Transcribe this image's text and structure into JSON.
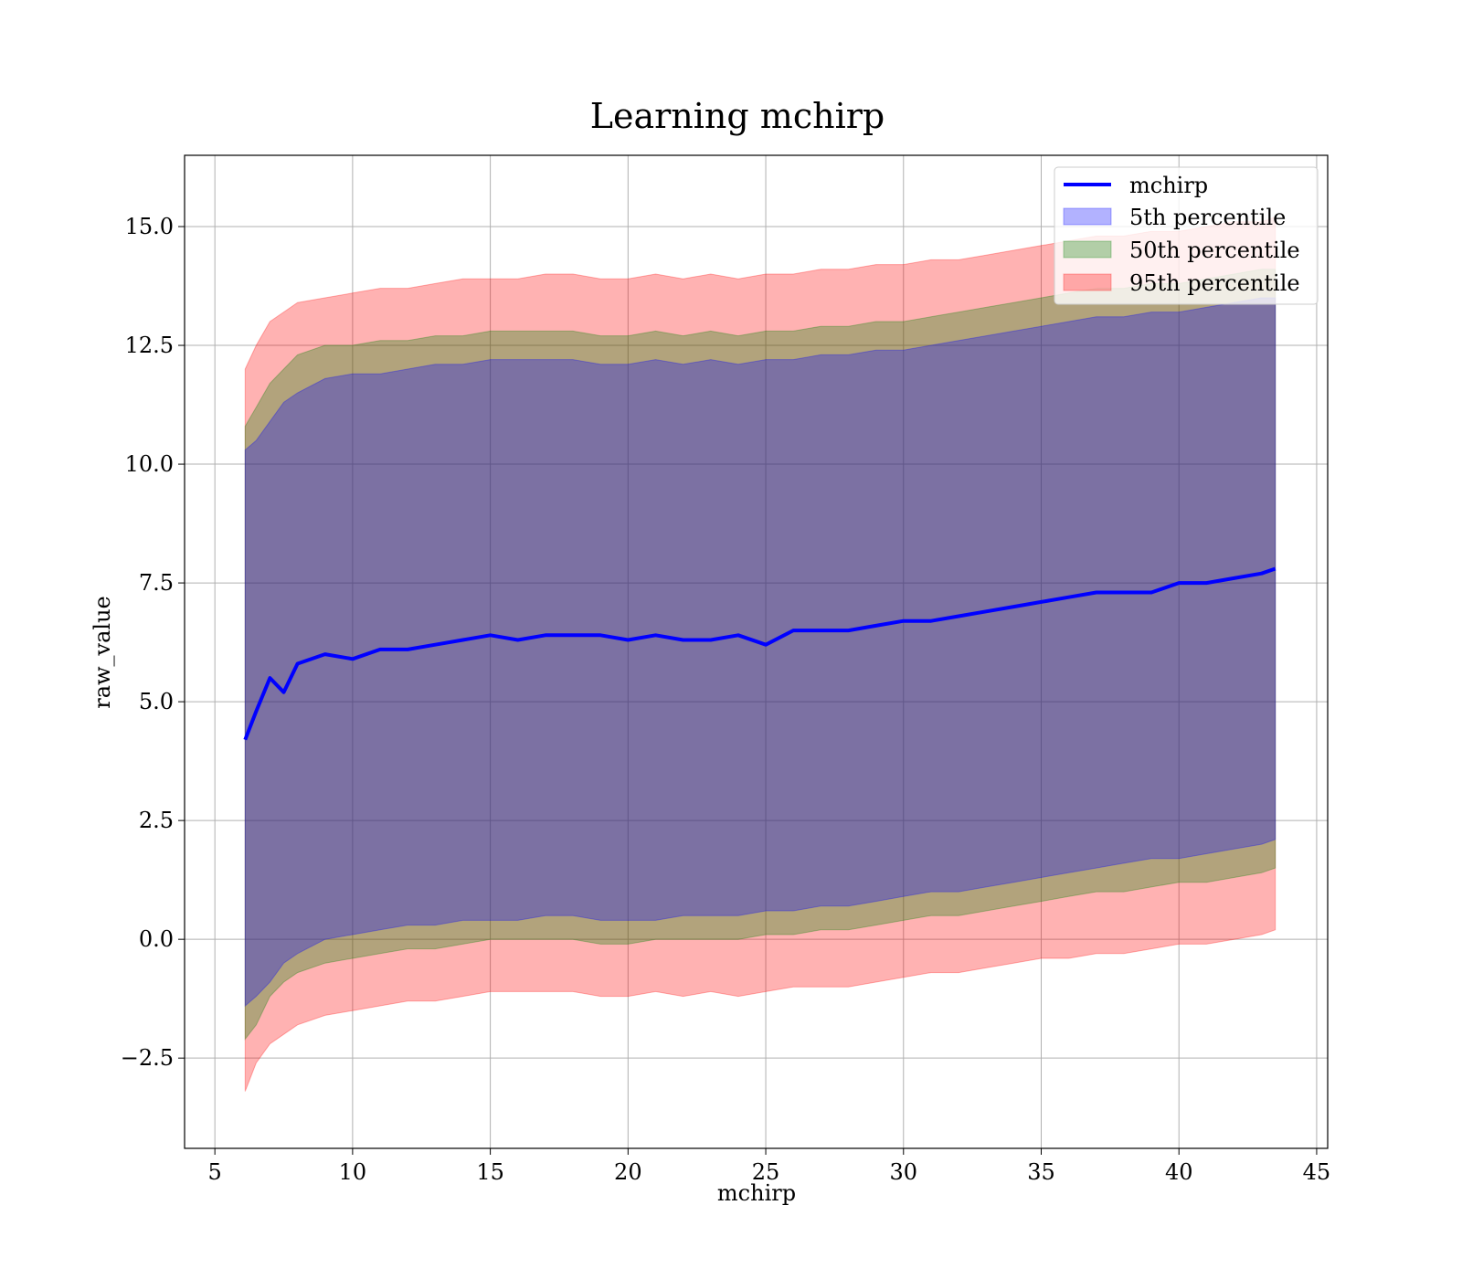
{
  "chart_data": {
    "type": "area",
    "title": "Learning mchirp",
    "xlabel": "mchirp",
    "ylabel": "raw_value",
    "xlim": [
      3.9,
      45.4
    ],
    "ylim": [
      -4.4,
      16.5
    ],
    "xticks": [
      5,
      10,
      15,
      20,
      25,
      30,
      35,
      40,
      45
    ],
    "xtick_labels": [
      "5",
      "10",
      "15",
      "20",
      "25",
      "30",
      "35",
      "40",
      "45"
    ],
    "yticks": [
      -2.5,
      0.0,
      2.5,
      5.0,
      7.5,
      10.0,
      12.5,
      15.0
    ],
    "ytick_labels": [
      "−2.5",
      "0.0",
      "2.5",
      "5.0",
      "7.5",
      "10.0",
      "12.5",
      "15.0"
    ],
    "grid": true,
    "legend_position": "upper right",
    "x": [
      6.1,
      6.5,
      7.0,
      7.5,
      8.0,
      9.0,
      10.0,
      11.0,
      12.0,
      13.0,
      14.0,
      15.0,
      16.0,
      17.0,
      18.0,
      19.0,
      20.0,
      21.0,
      22.0,
      23.0,
      24.0,
      25.0,
      26.0,
      27.0,
      28.0,
      29.0,
      30.0,
      31.0,
      32.0,
      33.0,
      34.0,
      35.0,
      36.0,
      37.0,
      38.0,
      39.0,
      40.0,
      41.0,
      42.0,
      43.0,
      43.5
    ],
    "series": [
      {
        "name": "mchirp",
        "kind": "line",
        "color": "#0000ff",
        "values": [
          4.2,
          4.8,
          5.5,
          5.2,
          5.8,
          6.0,
          5.9,
          6.1,
          6.1,
          6.2,
          6.3,
          6.4,
          6.3,
          6.4,
          6.4,
          6.4,
          6.3,
          6.4,
          6.3,
          6.3,
          6.4,
          6.2,
          6.5,
          6.5,
          6.5,
          6.6,
          6.7,
          6.7,
          6.8,
          6.9,
          7.0,
          7.1,
          7.2,
          7.3,
          7.3,
          7.3,
          7.5,
          7.5,
          7.6,
          7.7,
          7.8
        ]
      },
      {
        "name": "5th percentile",
        "kind": "band",
        "color": "#0000ff",
        "lower": [
          -1.4,
          -1.2,
          -0.9,
          -0.5,
          -0.3,
          0.0,
          0.1,
          0.2,
          0.3,
          0.3,
          0.4,
          0.4,
          0.4,
          0.5,
          0.5,
          0.4,
          0.4,
          0.4,
          0.5,
          0.5,
          0.5,
          0.6,
          0.6,
          0.7,
          0.7,
          0.8,
          0.9,
          1.0,
          1.0,
          1.1,
          1.2,
          1.3,
          1.4,
          1.5,
          1.6,
          1.7,
          1.7,
          1.8,
          1.9,
          2.0,
          2.1
        ],
        "upper": [
          10.3,
          10.5,
          10.9,
          11.3,
          11.5,
          11.8,
          11.9,
          11.9,
          12.0,
          12.1,
          12.1,
          12.2,
          12.2,
          12.2,
          12.2,
          12.1,
          12.1,
          12.2,
          12.1,
          12.2,
          12.1,
          12.2,
          12.2,
          12.3,
          12.3,
          12.4,
          12.4,
          12.5,
          12.6,
          12.7,
          12.8,
          12.9,
          13.0,
          13.1,
          13.1,
          13.2,
          13.2,
          13.3,
          13.4,
          13.5,
          13.5
        ]
      },
      {
        "name": "50th percentile",
        "kind": "band",
        "color": "#008000",
        "lower": [
          -2.1,
          -1.8,
          -1.2,
          -0.9,
          -0.7,
          -0.5,
          -0.4,
          -0.3,
          -0.2,
          -0.2,
          -0.1,
          0.0,
          0.0,
          0.0,
          0.0,
          -0.1,
          -0.1,
          0.0,
          0.0,
          0.0,
          0.0,
          0.1,
          0.1,
          0.2,
          0.2,
          0.3,
          0.4,
          0.5,
          0.5,
          0.6,
          0.7,
          0.8,
          0.9,
          1.0,
          1.0,
          1.1,
          1.2,
          1.2,
          1.3,
          1.4,
          1.5
        ],
        "upper": [
          10.8,
          11.2,
          11.7,
          12.0,
          12.3,
          12.5,
          12.5,
          12.6,
          12.6,
          12.7,
          12.7,
          12.8,
          12.8,
          12.8,
          12.8,
          12.7,
          12.7,
          12.8,
          12.7,
          12.8,
          12.7,
          12.8,
          12.8,
          12.9,
          12.9,
          13.0,
          13.0,
          13.1,
          13.2,
          13.3,
          13.4,
          13.5,
          13.6,
          13.7,
          13.7,
          13.8,
          13.8,
          13.9,
          14.0,
          14.1,
          14.1
        ]
      },
      {
        "name": "95th percentile",
        "kind": "band",
        "color": "#ff0000",
        "lower": [
          -3.2,
          -2.6,
          -2.2,
          -2.0,
          -1.8,
          -1.6,
          -1.5,
          -1.4,
          -1.3,
          -1.3,
          -1.2,
          -1.1,
          -1.1,
          -1.1,
          -1.1,
          -1.2,
          -1.2,
          -1.1,
          -1.2,
          -1.1,
          -1.2,
          -1.1,
          -1.0,
          -1.0,
          -1.0,
          -0.9,
          -0.8,
          -0.7,
          -0.7,
          -0.6,
          -0.5,
          -0.4,
          -0.4,
          -0.3,
          -0.3,
          -0.2,
          -0.1,
          -0.1,
          0.0,
          0.1,
          0.2
        ],
        "upper": [
          12.0,
          12.5,
          13.0,
          13.2,
          13.4,
          13.5,
          13.6,
          13.7,
          13.7,
          13.8,
          13.9,
          13.9,
          13.9,
          14.0,
          14.0,
          13.9,
          13.9,
          14.0,
          13.9,
          14.0,
          13.9,
          14.0,
          14.0,
          14.1,
          14.1,
          14.2,
          14.2,
          14.3,
          14.3,
          14.4,
          14.5,
          14.6,
          14.7,
          14.8,
          14.8,
          14.9,
          14.9,
          15.0,
          15.1,
          15.1,
          15.2
        ]
      }
    ]
  }
}
